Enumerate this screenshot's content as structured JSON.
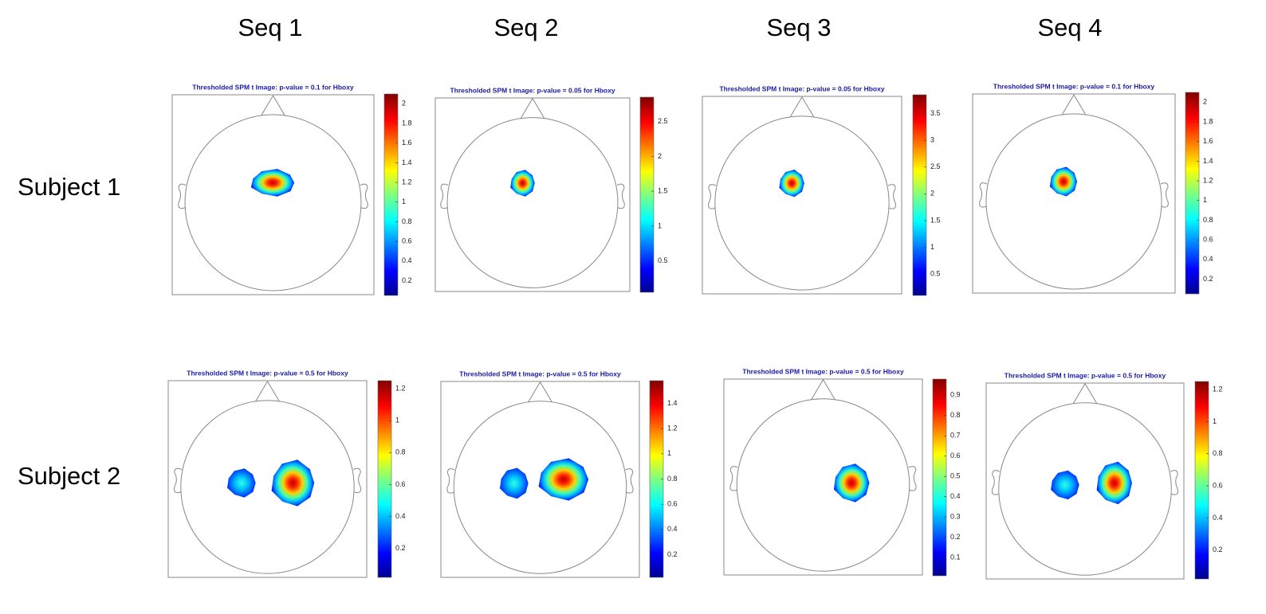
{
  "columns": [
    "Seq 1",
    "Seq 2",
    "Seq 3",
    "Seq 4"
  ],
  "rows": [
    "Subject 1",
    "Subject 2"
  ],
  "panels": [
    [
      {
        "title": "Thresholded SPM  t Image: p-value = 0.1  for Hboxy",
        "colorbar": {
          "clim": [
            0.05,
            2.1
          ],
          "ticks": [
            0.2,
            0.4,
            0.6,
            0.8,
            1,
            1.2,
            1.4,
            1.6,
            1.8,
            2
          ]
        }
      },
      {
        "title": "Thresholded SPM  t Image: p-value = 0.05  for Hboxy",
        "colorbar": {
          "clim": [
            0.05,
            2.85
          ],
          "ticks": [
            0.5,
            1,
            1.5,
            2,
            2.5
          ]
        }
      },
      {
        "title": "Thresholded SPM  t Image: p-value = 0.05  for Hboxy",
        "colorbar": {
          "clim": [
            0.1,
            3.85
          ],
          "ticks": [
            0.5,
            1,
            1.5,
            2,
            2.5,
            3,
            3.5
          ]
        }
      },
      {
        "title": "Thresholded SPM  t Image: p-value = 0.1  for Hboxy",
        "colorbar": {
          "clim": [
            0.05,
            2.1
          ],
          "ticks": [
            0.2,
            0.4,
            0.6,
            0.8,
            1,
            1.2,
            1.4,
            1.6,
            1.8,
            2
          ]
        }
      }
    ],
    [
      {
        "title": "Thresholded SPM  t Image: p-value = 0.5  for Hboxy",
        "colorbar": {
          "clim": [
            0.02,
            1.25
          ],
          "ticks": [
            0.2,
            0.4,
            0.6,
            0.8,
            1,
            1.2
          ]
        }
      },
      {
        "title": "Thresholded SPM  t Image: p-value = 0.5  for Hboxy",
        "colorbar": {
          "clim": [
            0.02,
            1.58
          ],
          "ticks": [
            0.2,
            0.4,
            0.6,
            0.8,
            1,
            1.2,
            1.4
          ]
        }
      },
      {
        "title": "Thresholded SPM  t Image: p-value = 0.5  for Hboxy",
        "colorbar": {
          "clim": [
            0.01,
            0.98
          ],
          "ticks": [
            0.1,
            0.2,
            0.3,
            0.4,
            0.5,
            0.6,
            0.7,
            0.8,
            0.9
          ]
        }
      },
      {
        "title": "Thresholded SPM  t Image: p-value = 0.5  for Hboxy",
        "colorbar": {
          "clim": [
            0.02,
            1.25
          ],
          "ticks": [
            0.2,
            0.4,
            0.6,
            0.8,
            1,
            1.2
          ]
        }
      }
    ]
  ]
}
